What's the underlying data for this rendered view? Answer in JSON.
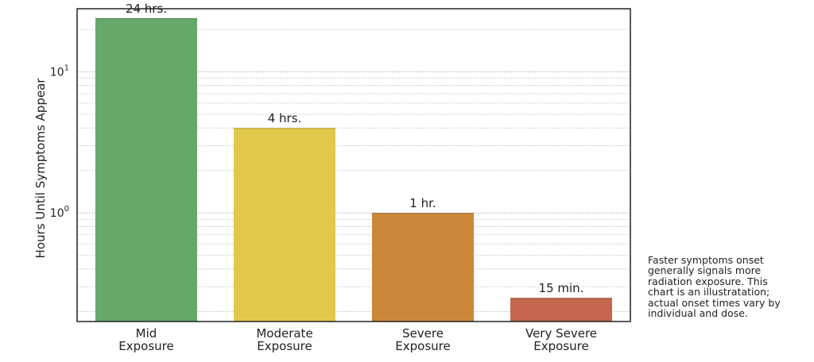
{
  "chart_data": {
    "type": "bar",
    "ylabel": "Hours Until Symptoms Appear",
    "xlabel": "",
    "yscale": "log",
    "ylim": [
      0.17,
      28
    ],
    "y_ticks": [
      {
        "value": 1,
        "base": "10",
        "exponent": "0"
      },
      {
        "value": 10,
        "base": "10",
        "exponent": "1"
      }
    ],
    "grid": true,
    "categories": [
      {
        "line1": "Mid",
        "line2": "Exposure"
      },
      {
        "line1": "Moderate",
        "line2": "Exposure"
      },
      {
        "line1": "Severe",
        "line2": "Exposure"
      },
      {
        "line1": "Very Severe",
        "line2": "Exposure"
      }
    ],
    "values": [
      24,
      4,
      1,
      0.25
    ],
    "data_labels": [
      "24 hrs.",
      "4 hrs.",
      "1 hr.",
      "15 min."
    ],
    "colors": [
      "#66a86a",
      "#e2c84a",
      "#ca873a",
      "#c4674e"
    ]
  },
  "note": {
    "lines": [
      "Faster symptoms onset",
      "generally signals more",
      "radiation exposure. This",
      "chart is an illustratation;",
      "actual onset times vary by",
      "individual and dose."
    ]
  }
}
